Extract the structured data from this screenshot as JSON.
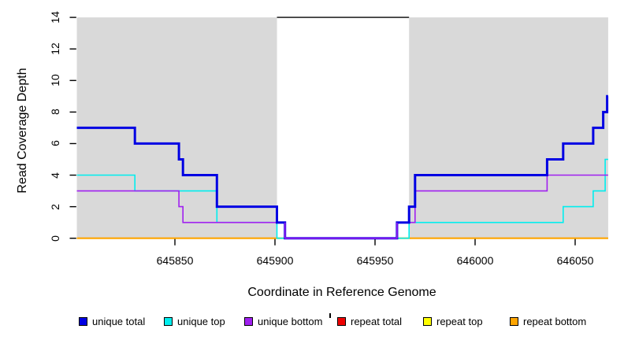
{
  "chart_data": {
    "type": "line",
    "title": "",
    "xlabel": "Coordinate in Reference Genome",
    "ylabel": "Read Coverage Depth",
    "xlim": [
      645801,
      646066.5
    ],
    "ylim": [
      0,
      14
    ],
    "x_ticks": [
      645850,
      645900,
      645950,
      646000,
      646050
    ],
    "y_ticks": [
      0,
      2,
      4,
      6,
      8,
      10,
      12,
      14
    ],
    "grid": false,
    "legend_position": "bottom",
    "step": "after",
    "background_color": "#ffffff",
    "shaded_regions": [
      {
        "x0": 645801,
        "x1": 645901,
        "color": "#d9d9d9"
      },
      {
        "x0": 645967,
        "x1": 646066.5,
        "color": "#d9d9d9"
      }
    ],
    "gap_top_line": {
      "x0": 645901,
      "x1": 645967,
      "y": 14,
      "color": "#000000"
    },
    "series": [
      {
        "name": "repeat total",
        "color": "#ee0000",
        "width": 1.6,
        "points": [
          [
            645801,
            0
          ]
        ]
      },
      {
        "name": "repeat top",
        "color": "#ffff00",
        "width": 1.6,
        "points": [
          [
            645801,
            0
          ]
        ]
      },
      {
        "name": "repeat bottom",
        "color": "#ffa500",
        "width": 2,
        "points": [
          [
            645801,
            0
          ]
        ]
      },
      {
        "name": "unique top",
        "color": "#00eeee",
        "width": 1.6,
        "points": [
          [
            645801,
            4
          ],
          [
            645830,
            3
          ],
          [
            645871,
            1
          ],
          [
            645901,
            0
          ],
          [
            645967,
            1
          ],
          [
            646044,
            2
          ],
          [
            646059,
            3
          ],
          [
            646065,
            5
          ]
        ]
      },
      {
        "name": "unique bottom",
        "color": "#a020f0",
        "width": 1.6,
        "points": [
          [
            645801,
            3
          ],
          [
            645852,
            2
          ],
          [
            645854,
            1
          ],
          [
            645905,
            0
          ],
          [
            645961,
            1
          ],
          [
            645970,
            3
          ],
          [
            646036,
            4
          ]
        ]
      },
      {
        "name": "unique total",
        "color": "#0000e3",
        "width": 3,
        "points": [
          [
            645801,
            7
          ],
          [
            645830,
            6
          ],
          [
            645852,
            5
          ],
          [
            645854,
            4
          ],
          [
            645871,
            2
          ],
          [
            645901,
            1
          ],
          [
            645905,
            0
          ],
          [
            645961,
            1
          ],
          [
            645967,
            2
          ],
          [
            645970,
            4
          ],
          [
            646036,
            5
          ],
          [
            646044,
            6
          ],
          [
            646059,
            7
          ],
          [
            646064,
            8
          ],
          [
            646066,
            9
          ]
        ]
      }
    ],
    "overlay_gap_zero_line": {
      "color": "#a020f0",
      "width": 1.6,
      "polyline": [
        [
          645905,
          1
        ],
        [
          645905,
          0
        ],
        [
          645961,
          0
        ],
        [
          645961,
          1
        ]
      ]
    }
  },
  "axes": {
    "x_label": "Coordinate in Reference Genome",
    "y_label": "Read Coverage Depth"
  },
  "legend": {
    "items": [
      {
        "label": "unique total",
        "color": "#0000e3"
      },
      {
        "label": "unique top",
        "color": "#00eeee"
      },
      {
        "label": "unique bottom",
        "color": "#a020f0"
      },
      {
        "label": "repeat total",
        "color": "#ee0000"
      },
      {
        "label": "repeat top",
        "color": "#ffff00"
      },
      {
        "label": "repeat bottom",
        "color": "#ffa500"
      }
    ],
    "stray_mark": true
  }
}
